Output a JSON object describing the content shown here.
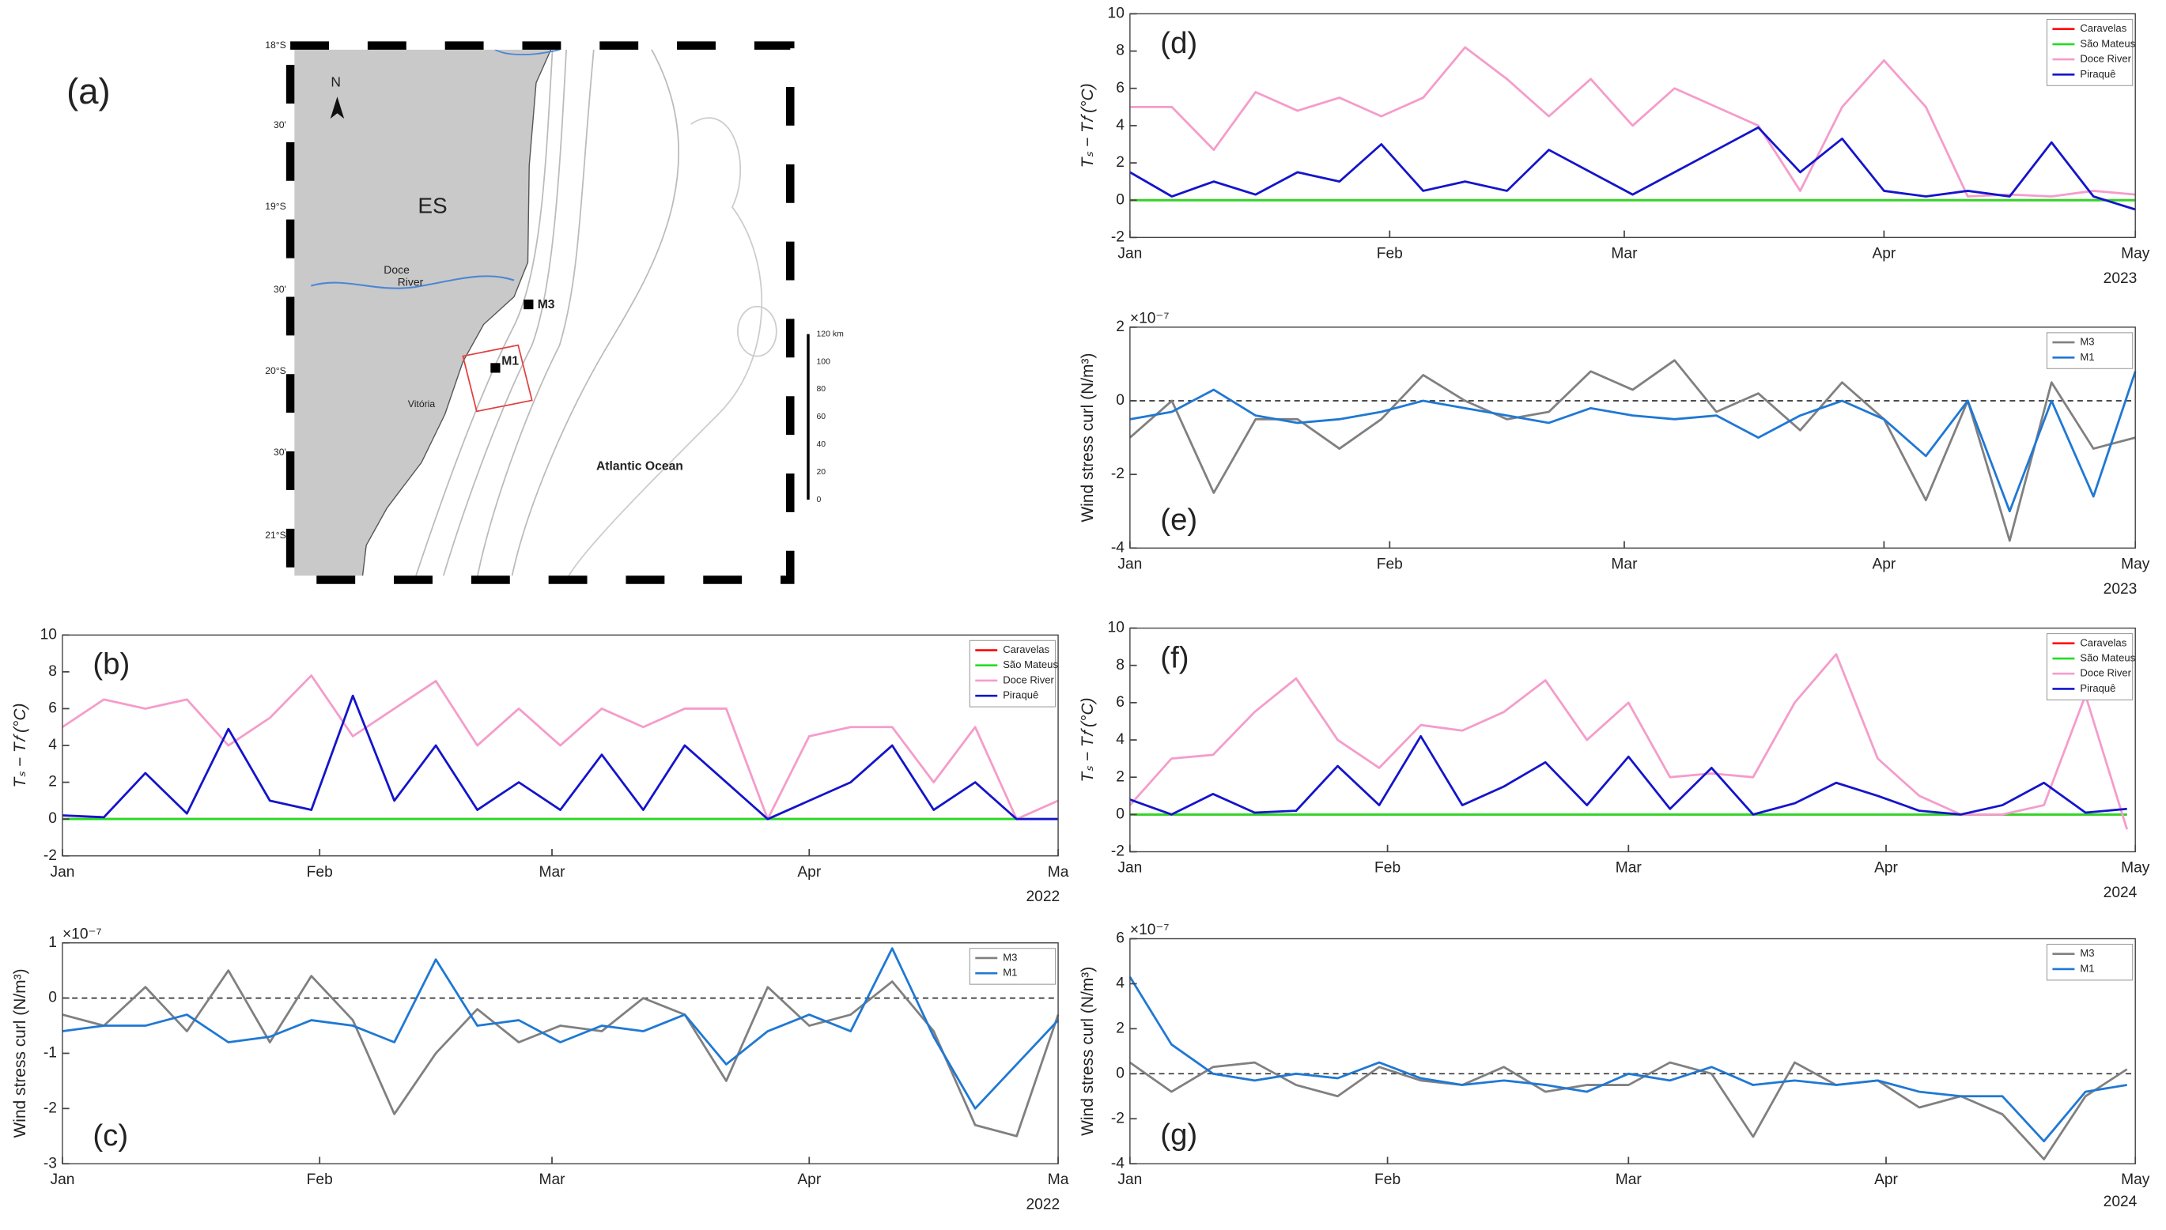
{
  "map": {
    "panel_label": "(a)",
    "north": "N",
    "region": "ES",
    "river": [
      "Doce",
      "River"
    ],
    "stations": [
      "M3",
      "M1"
    ],
    "city": "Vitória",
    "ocean": "Atlantic Ocean",
    "lat_labels": [
      "18°S",
      "30'",
      "19°S",
      "30'",
      "20°S",
      "30'",
      "21°S"
    ],
    "scale_labels": [
      "120 km",
      "100",
      "80",
      "60",
      "40",
      "20",
      "0"
    ]
  },
  "chart_data": [
    {
      "type": "line",
      "panel_label": "(b)",
      "ylabel": "Tₛ − T𝑓 (°C)",
      "year_label": "2022",
      "legend": "upper right",
      "xlim": [
        0,
        120
      ],
      "xticks": [
        {
          "value": 0,
          "label": "Jan"
        },
        {
          "value": 31,
          "label": "Feb"
        },
        {
          "value": 59,
          "label": "Mar"
        },
        {
          "value": 90,
          "label": "Apr"
        },
        {
          "value": 120,
          "label": "Ma"
        }
      ],
      "ylim": [
        -2,
        10
      ],
      "yticks": [
        -2,
        0,
        2,
        4,
        6,
        8,
        10
      ],
      "x": [
        0,
        5,
        10,
        15,
        20,
        25,
        30,
        35,
        40,
        45,
        50,
        55,
        60,
        65,
        70,
        75,
        80,
        85,
        90,
        95,
        100,
        105,
        110,
        115,
        120
      ],
      "series": [
        {
          "name": "Caravelas",
          "color": "#ff0000",
          "values": [
            0,
            0,
            0,
            0,
            0,
            0,
            0,
            0,
            0,
            0,
            0,
            0,
            0,
            0,
            0,
            0,
            0,
            0,
            0,
            0,
            0,
            0,
            0,
            0,
            0
          ]
        },
        {
          "name": "São Mateus",
          "color": "#22dd22",
          "values": [
            0,
            0,
            0,
            0,
            0,
            0,
            0,
            0,
            0,
            0,
            0,
            0,
            0,
            0,
            0,
            0,
            0,
            0,
            0,
            0,
            0,
            0,
            0,
            0,
            0
          ]
        },
        {
          "name": "Doce River",
          "color": "#f59ccb",
          "values": [
            5.0,
            6.5,
            6.0,
            6.5,
            4.0,
            5.5,
            7.8,
            4.5,
            6.0,
            7.5,
            4.0,
            6.0,
            4.0,
            6.0,
            5.0,
            6.0,
            6.0,
            0,
            4.5,
            5.0,
            5.0,
            2.0,
            5.0,
            0,
            1.0
          ]
        },
        {
          "name": "Piraquê",
          "color": "#1414cc",
          "values": [
            0.2,
            0.1,
            2.5,
            0.3,
            4.9,
            1.0,
            0.5,
            6.7,
            1.0,
            4.0,
            0.5,
            2.0,
            0.5,
            3.5,
            0.5,
            4.0,
            2.0,
            0,
            1.0,
            2.0,
            4.0,
            0.5,
            2.0,
            0,
            0
          ]
        }
      ]
    },
    {
      "type": "line",
      "panel_label": "(c)",
      "ylabel": "Wind stress curl (N/m³)",
      "exponent": "×10⁻⁷",
      "year_label": "2022",
      "legend": "upper right",
      "zero_line": true,
      "xlim": [
        0,
        120
      ],
      "xticks": [
        {
          "value": 0,
          "label": "Jan"
        },
        {
          "value": 31,
          "label": "Feb"
        },
        {
          "value": 59,
          "label": "Mar"
        },
        {
          "value": 90,
          "label": "Apr"
        },
        {
          "value": 120,
          "label": "Ma"
        }
      ],
      "ylim": [
        -3,
        1
      ],
      "yticks": [
        -3,
        -2,
        -1,
        0,
        1
      ],
      "x": [
        0,
        5,
        10,
        15,
        20,
        25,
        30,
        35,
        40,
        45,
        50,
        55,
        60,
        65,
        70,
        75,
        80,
        85,
        90,
        95,
        100,
        105,
        110,
        115,
        120
      ],
      "series": [
        {
          "name": "M3",
          "color": "#808080",
          "values": [
            -0.3,
            -0.5,
            0.2,
            -0.6,
            0.5,
            -0.8,
            0.4,
            -0.4,
            -2.1,
            -1.0,
            -0.2,
            -0.8,
            -0.5,
            -0.6,
            0,
            -0.3,
            -1.5,
            0.2,
            -0.5,
            -0.3,
            0.3,
            -0.6,
            -2.3,
            -2.5,
            -0.3
          ]
        },
        {
          "name": "M1",
          "color": "#1f78d4",
          "values": [
            -0.6,
            -0.5,
            -0.5,
            -0.3,
            -0.8,
            -0.7,
            -0.4,
            -0.5,
            -0.8,
            0.7,
            -0.5,
            -0.4,
            -0.8,
            -0.5,
            -0.6,
            -0.3,
            -1.2,
            -0.6,
            -0.3,
            -0.6,
            0.9,
            -0.7,
            -2.0,
            -1.2,
            -0.4
          ]
        }
      ]
    },
    {
      "type": "line",
      "panel_label": "(d)",
      "ylabel": "Tₛ − T𝑓 (°C)",
      "year_label": "2023",
      "legend": "upper right",
      "xlim": [
        0,
        120
      ],
      "xticks": [
        {
          "value": 0,
          "label": "Jan"
        },
        {
          "value": 31,
          "label": "Feb"
        },
        {
          "value": 59,
          "label": "Mar"
        },
        {
          "value": 90,
          "label": "Apr"
        },
        {
          "value": 120,
          "label": "May"
        }
      ],
      "ylim": [
        -2,
        10
      ],
      "yticks": [
        -2,
        0,
        2,
        4,
        6,
        8,
        10
      ],
      "x": [
        0,
        5,
        10,
        15,
        20,
        25,
        30,
        35,
        40,
        45,
        50,
        55,
        60,
        65,
        70,
        75,
        80,
        85,
        90,
        95,
        100,
        105,
        110,
        115,
        120
      ],
      "series": [
        {
          "name": "Caravelas",
          "color": "#ff0000",
          "values": [
            0,
            0,
            0,
            0,
            0,
            0,
            0,
            0,
            0,
            0,
            0,
            0,
            0,
            0,
            0,
            0,
            0,
            0,
            0,
            0,
            0,
            0,
            0,
            0,
            0
          ]
        },
        {
          "name": "São Mateus",
          "color": "#22dd22",
          "values": [
            0,
            0,
            0,
            0,
            0,
            0,
            0,
            0,
            0,
            0,
            0,
            0,
            0,
            0,
            0,
            0,
            0,
            0,
            0,
            0,
            0,
            0,
            0,
            0,
            0
          ]
        },
        {
          "name": "Doce River",
          "color": "#f59ccb",
          "values": [
            5.0,
            5.0,
            2.7,
            5.8,
            4.8,
            5.5,
            4.5,
            5.5,
            8.2,
            6.5,
            4.5,
            6.5,
            4.0,
            6.0,
            5.0,
            4.0,
            0.5,
            5.0,
            7.5,
            5.0,
            0.2,
            0.3,
            0.2,
            0.5,
            0.3
          ]
        },
        {
          "name": "Piraquê",
          "color": "#1414cc",
          "values": [
            1.5,
            0.2,
            1.0,
            0.3,
            1.5,
            1.0,
            3.0,
            0.5,
            1.0,
            0.5,
            2.7,
            1.5,
            0.3,
            1.5,
            2.7,
            3.9,
            1.5,
            3.3,
            0.5,
            0.2,
            0.5,
            0.2,
            3.1,
            0.2,
            -0.5
          ]
        }
      ]
    },
    {
      "type": "line",
      "panel_label": "(e)",
      "ylabel": "Wind stress curl (N/m³)",
      "exponent": "×10⁻⁷",
      "year_label": "2023",
      "legend": "upper right",
      "zero_line": true,
      "xlim": [
        0,
        120
      ],
      "xticks": [
        {
          "value": 0,
          "label": "Jan"
        },
        {
          "value": 31,
          "label": "Feb"
        },
        {
          "value": 59,
          "label": "Mar"
        },
        {
          "value": 90,
          "label": "Apr"
        },
        {
          "value": 120,
          "label": "May"
        }
      ],
      "ylim": [
        -4,
        2
      ],
      "yticks": [
        -4,
        -2,
        0,
        2
      ],
      "x": [
        0,
        5,
        10,
        15,
        20,
        25,
        30,
        35,
        40,
        45,
        50,
        55,
        60,
        65,
        70,
        75,
        80,
        85,
        90,
        95,
        100,
        105,
        110,
        115,
        120
      ],
      "series": [
        {
          "name": "M3",
          "color": "#808080",
          "values": [
            -1.0,
            0,
            -2.5,
            -0.5,
            -0.5,
            -1.3,
            -0.5,
            0.7,
            0,
            -0.5,
            -0.3,
            0.8,
            0.3,
            1.1,
            -0.3,
            0.2,
            -0.8,
            0.5,
            -0.5,
            -2.7,
            0,
            -3.8,
            0.5,
            -1.3,
            -1.0
          ]
        },
        {
          "name": "M1",
          "color": "#1f78d4",
          "values": [
            -0.5,
            -0.3,
            0.3,
            -0.4,
            -0.6,
            -0.5,
            -0.3,
            0,
            -0.2,
            -0.4,
            -0.6,
            -0.2,
            -0.4,
            -0.5,
            -0.4,
            -1.0,
            -0.4,
            0,
            -0.5,
            -1.5,
            0,
            -3.0,
            0,
            -2.6,
            0.8
          ]
        }
      ]
    },
    {
      "type": "line",
      "panel_label": "(f)",
      "ylabel": "Tₛ − T𝑓 (°C)",
      "year_label": "2024",
      "legend": "upper right",
      "xlim": [
        0,
        121
      ],
      "xticks": [
        {
          "value": 0,
          "label": "Jan"
        },
        {
          "value": 31,
          "label": "Feb"
        },
        {
          "value": 60,
          "label": "Mar"
        },
        {
          "value": 91,
          "label": "Apr"
        },
        {
          "value": 121,
          "label": "May"
        }
      ],
      "ylim": [
        -2,
        10
      ],
      "yticks": [
        -2,
        0,
        2,
        4,
        6,
        8,
        10
      ],
      "x": [
        0,
        5,
        10,
        15,
        20,
        25,
        30,
        35,
        40,
        45,
        50,
        55,
        60,
        65,
        70,
        75,
        80,
        85,
        90,
        95,
        100,
        105,
        110,
        115,
        120
      ],
      "series": [
        {
          "name": "Caravelas",
          "color": "#ff0000",
          "values": [
            0,
            0,
            0,
            0,
            0,
            0,
            0,
            0,
            0,
            0,
            0,
            0,
            0,
            0,
            0,
            0,
            0,
            0,
            0,
            0,
            0,
            0,
            0,
            0,
            0
          ]
        },
        {
          "name": "São Mateus",
          "color": "#22dd22",
          "values": [
            0,
            0,
            0,
            0,
            0,
            0,
            0,
            0,
            0,
            0,
            0,
            0,
            0,
            0,
            0,
            0,
            0,
            0,
            0,
            0,
            0,
            0,
            0,
            0,
            0
          ]
        },
        {
          "name": "Doce River",
          "color": "#f59ccb",
          "values": [
            0.5,
            3.0,
            3.2,
            5.5,
            7.3,
            4.0,
            2.5,
            4.8,
            4.5,
            5.5,
            7.2,
            4.0,
            6.0,
            2.0,
            2.2,
            2.0,
            6.0,
            8.6,
            3.0,
            1.0,
            0,
            0,
            0.5,
            6.4,
            -0.8
          ]
        },
        {
          "name": "Piraquê",
          "color": "#1414cc",
          "values": [
            0.8,
            0,
            1.1,
            0.1,
            0.2,
            2.6,
            0.5,
            4.2,
            0.5,
            1.5,
            2.8,
            0.5,
            3.1,
            0.3,
            2.5,
            0,
            0.6,
            1.7,
            1.0,
            0.2,
            0,
            0.5,
            1.7,
            0.1,
            0.3
          ]
        }
      ]
    },
    {
      "type": "line",
      "panel_label": "(g)",
      "ylabel": "Wind stress curl (N/m³)",
      "exponent": "×10⁻⁷",
      "year_label": "2024",
      "legend": "upper right",
      "zero_line": true,
      "xlim": [
        0,
        121
      ],
      "xticks": [
        {
          "value": 0,
          "label": "Jan"
        },
        {
          "value": 31,
          "label": "Feb"
        },
        {
          "value": 60,
          "label": "Mar"
        },
        {
          "value": 91,
          "label": "Apr"
        },
        {
          "value": 121,
          "label": "May"
        }
      ],
      "ylim": [
        -4,
        6
      ],
      "yticks": [
        -4,
        -2,
        0,
        2,
        4,
        6
      ],
      "x": [
        0,
        5,
        10,
        15,
        20,
        25,
        30,
        35,
        40,
        45,
        50,
        55,
        60,
        65,
        70,
        75,
        80,
        85,
        90,
        95,
        100,
        105,
        110,
        115,
        120
      ],
      "series": [
        {
          "name": "M3",
          "color": "#808080",
          "values": [
            0.5,
            -0.8,
            0.3,
            0.5,
            -0.5,
            -1.0,
            0.3,
            -0.3,
            -0.5,
            0.3,
            -0.8,
            -0.5,
            -0.5,
            0.5,
            0,
            -2.8,
            0.5,
            -0.5,
            -0.3,
            -1.5,
            -1.0,
            -1.8,
            -3.8,
            -1.0,
            0.2
          ]
        },
        {
          "name": "M1",
          "color": "#1f78d4",
          "values": [
            4.3,
            1.3,
            0,
            -0.3,
            0,
            -0.2,
            0.5,
            -0.2,
            -0.5,
            -0.3,
            -0.5,
            -0.8,
            0,
            -0.3,
            0.3,
            -0.5,
            -0.3,
            -0.5,
            -0.3,
            -0.8,
            -1.0,
            -1.0,
            -3.0,
            -0.8,
            -0.5
          ]
        }
      ]
    }
  ]
}
